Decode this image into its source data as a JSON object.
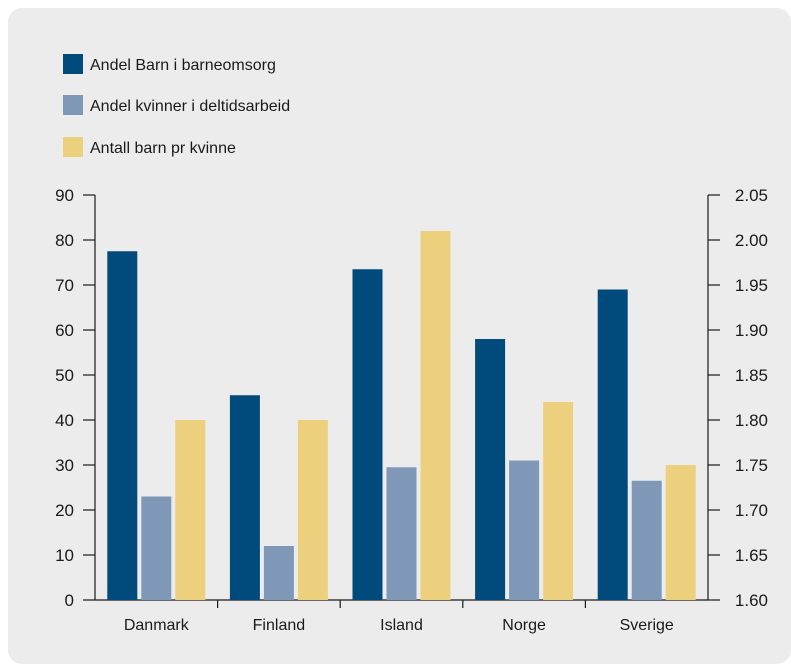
{
  "colors": {
    "panel_bg": "#ececec",
    "series1": "#004a7c",
    "series2": "#7f98b8",
    "series3": "#edd07e",
    "axis": "#1a1a1a"
  },
  "chart_data": {
    "type": "bar",
    "title": "",
    "xlabel": "",
    "ylabel": "",
    "categories": [
      "Danmark",
      "Finland",
      "Island",
      "Norge",
      "Sverige"
    ],
    "series": [
      {
        "name": "Andel Barn i barneomsorg",
        "axis": "left",
        "values": [
          77.5,
          45.5,
          73.5,
          58,
          69
        ]
      },
      {
        "name": "Andel kvinner i deltidsarbeid",
        "axis": "left",
        "values": [
          23,
          12,
          29.5,
          31,
          26.5
        ]
      },
      {
        "name": "Antall barn pr kvinne",
        "axis": "right",
        "values": [
          1.8,
          1.8,
          2.01,
          1.82,
          1.75
        ]
      }
    ],
    "y_left": {
      "ylim": [
        0,
        90
      ],
      "ticks": [
        "0",
        "10",
        "20",
        "30",
        "40",
        "50",
        "60",
        "70",
        "80",
        "90"
      ]
    },
    "y_right": {
      "ylim": [
        1.6,
        2.05
      ],
      "ticks": [
        "1.60",
        "1.65",
        "1.70",
        "1.75",
        "1.80",
        "1.85",
        "1.90",
        "1.95",
        "2.00",
        "2.05"
      ]
    },
    "legend_position": "top-left",
    "grid": false
  }
}
